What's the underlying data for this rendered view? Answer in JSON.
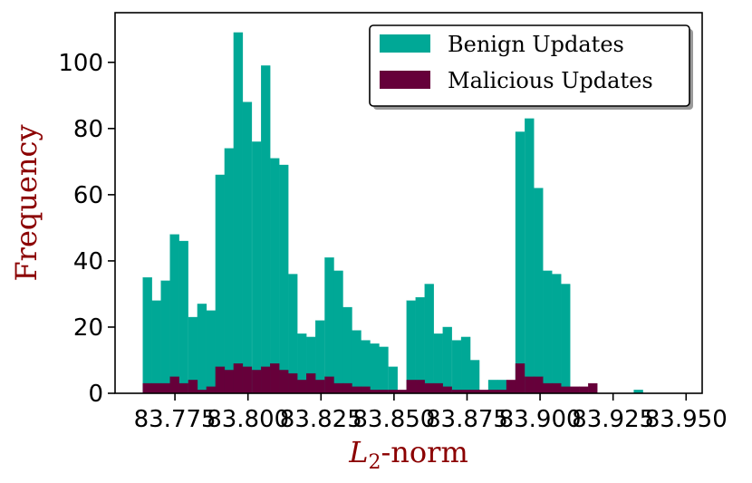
{
  "chart_data": {
    "type": "histogram",
    "title": "",
    "xlabel": "L2-norm",
    "xlabel_main": "L",
    "xlabel_sub": "2",
    "xlabel_rest": "-norm",
    "ylabel": "Frequency",
    "xlim": [
      83.7545,
      83.9555
    ],
    "ylim": [
      0,
      115
    ],
    "bin_width": 0.00312,
    "x_ticks": [
      83.775,
      83.8,
      83.825,
      83.85,
      83.875,
      83.9,
      83.925,
      83.95
    ],
    "x_tick_labels": [
      "83.775",
      "83.800",
      "83.825",
      "83.850",
      "83.875",
      "83.900",
      "83.925",
      "83.950"
    ],
    "y_ticks": [
      0,
      20,
      40,
      60,
      80,
      100
    ],
    "y_tick_labels": [
      "0",
      "20",
      "40",
      "60",
      "80",
      "100"
    ],
    "legend": {
      "position": "top-right",
      "entries": [
        "Benign Updates",
        "Malicious Updates"
      ]
    },
    "colors": {
      "benign": "#00a896",
      "malicious": "#66003a",
      "axis_title": "#8b0000"
    },
    "series": [
      {
        "name": "Benign Updates",
        "bins": [
          [
            83.764,
            35
          ],
          [
            83.7671,
            28
          ],
          [
            83.7702,
            34
          ],
          [
            83.7733,
            48
          ],
          [
            83.7764,
            46
          ],
          [
            83.7796,
            23
          ],
          [
            83.7827,
            27
          ],
          [
            83.7858,
            25
          ],
          [
            83.7889,
            66
          ],
          [
            83.792,
            74
          ],
          [
            83.7951,
            109
          ],
          [
            83.7982,
            88
          ],
          [
            83.8014,
            76
          ],
          [
            83.8045,
            99
          ],
          [
            83.8076,
            71
          ],
          [
            83.8107,
            69
          ],
          [
            83.8138,
            36
          ],
          [
            83.8169,
            18
          ],
          [
            83.82,
            17
          ],
          [
            83.8231,
            22
          ],
          [
            83.8263,
            41
          ],
          [
            83.8294,
            37
          ],
          [
            83.8325,
            26
          ],
          [
            83.8356,
            19
          ],
          [
            83.8387,
            16
          ],
          [
            83.8418,
            15
          ],
          [
            83.8449,
            14
          ],
          [
            83.8481,
            8
          ],
          [
            83.8543,
            28
          ],
          [
            83.8574,
            29
          ],
          [
            83.8605,
            33
          ],
          [
            83.8636,
            18
          ],
          [
            83.8667,
            20
          ],
          [
            83.8699,
            16
          ],
          [
            83.873,
            17
          ],
          [
            83.8761,
            10
          ],
          [
            83.8823,
            4
          ],
          [
            83.8854,
            4
          ],
          [
            83.8916,
            79
          ],
          [
            83.8948,
            83
          ],
          [
            83.8979,
            62
          ],
          [
            83.901,
            37
          ],
          [
            83.9041,
            36
          ],
          [
            83.9072,
            33
          ],
          [
            83.9321,
            1
          ]
        ]
      },
      {
        "name": "Malicious Updates",
        "bins": [
          [
            83.764,
            3
          ],
          [
            83.7671,
            3
          ],
          [
            83.7702,
            3
          ],
          [
            83.7733,
            5
          ],
          [
            83.7764,
            3
          ],
          [
            83.7796,
            4
          ],
          [
            83.7827,
            1
          ],
          [
            83.7858,
            2
          ],
          [
            83.7889,
            8
          ],
          [
            83.792,
            7
          ],
          [
            83.7951,
            9
          ],
          [
            83.7982,
            8
          ],
          [
            83.8014,
            7
          ],
          [
            83.8045,
            8
          ],
          [
            83.8076,
            9
          ],
          [
            83.8107,
            7
          ],
          [
            83.8138,
            6
          ],
          [
            83.8169,
            4
          ],
          [
            83.82,
            6
          ],
          [
            83.8231,
            4
          ],
          [
            83.8263,
            5
          ],
          [
            83.8294,
            3
          ],
          [
            83.8325,
            3
          ],
          [
            83.8356,
            2
          ],
          [
            83.8387,
            2
          ],
          [
            83.8418,
            1
          ],
          [
            83.8449,
            1
          ],
          [
            83.8481,
            1
          ],
          [
            83.8512,
            1
          ],
          [
            83.8543,
            4
          ],
          [
            83.8574,
            4
          ],
          [
            83.8605,
            3
          ],
          [
            83.8636,
            3
          ],
          [
            83.8667,
            2
          ],
          [
            83.8699,
            1
          ],
          [
            83.873,
            1
          ],
          [
            83.8761,
            1
          ],
          [
            83.8792,
            1
          ],
          [
            83.8823,
            1
          ],
          [
            83.8854,
            1
          ],
          [
            83.8885,
            4
          ],
          [
            83.8916,
            9
          ],
          [
            83.8948,
            5
          ],
          [
            83.8979,
            5
          ],
          [
            83.901,
            3
          ],
          [
            83.9041,
            3
          ],
          [
            83.9072,
            2
          ],
          [
            83.9103,
            2
          ],
          [
            83.9134,
            2
          ],
          [
            83.9165,
            3
          ]
        ]
      }
    ]
  }
}
